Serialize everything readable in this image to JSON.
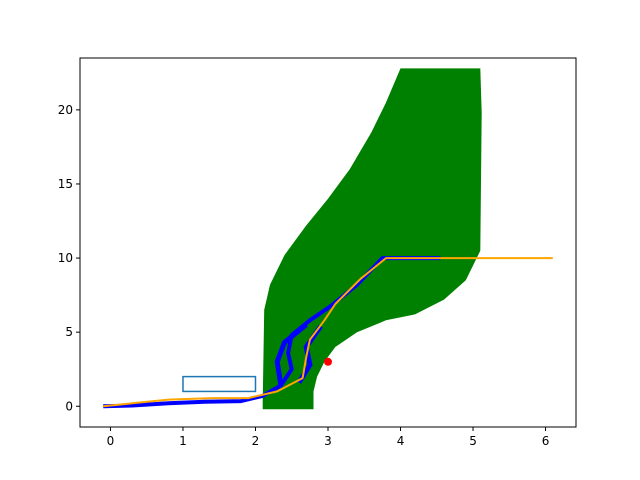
{
  "chart_data": {
    "type": "line",
    "title": "",
    "xlabel": "",
    "ylabel": "",
    "xlim": [
      -0.42,
      6.42
    ],
    "ylim": [
      -1.4,
      23.5
    ],
    "grid": false,
    "x_ticks": [
      0,
      1,
      2,
      3,
      4,
      5,
      6
    ],
    "y_ticks": [
      0,
      5,
      10,
      15,
      20
    ],
    "colors": {
      "band": "#008000",
      "trajectories": "#0000ff",
      "path": "#ffa500",
      "rectangle": "#1f77b4",
      "goal_point": "#ff0000"
    },
    "band_region": {
      "upper": [
        [
          2.1,
          0.3
        ],
        [
          2.12,
          6.5
        ],
        [
          2.2,
          8.2
        ],
        [
          2.4,
          10.2
        ],
        [
          2.7,
          12.2
        ],
        [
          3.0,
          14.0
        ],
        [
          3.3,
          16.0
        ],
        [
          3.6,
          18.5
        ],
        [
          3.8,
          20.5
        ],
        [
          4.0,
          22.8
        ],
        [
          5.1,
          22.8
        ]
      ],
      "right": [
        [
          5.1,
          22.8
        ],
        [
          5.12,
          19.8
        ],
        [
          5.1,
          10.5
        ]
      ],
      "lower": [
        [
          5.1,
          10.5
        ],
        [
          4.9,
          8.5
        ],
        [
          4.6,
          7.2
        ],
        [
          4.2,
          6.2
        ],
        [
          3.8,
          5.8
        ],
        [
          3.4,
          5.0
        ],
        [
          3.1,
          4.0
        ],
        [
          2.95,
          3.0
        ],
        [
          2.85,
          2.0
        ],
        [
          2.8,
          1.0
        ],
        [
          2.8,
          -0.2
        ]
      ],
      "bottom": [
        [
          2.8,
          -0.2
        ],
        [
          2.1,
          -0.2
        ]
      ]
    },
    "rectangle": {
      "x": [
        1.0,
        2.0
      ],
      "y": [
        1.0,
        2.0
      ]
    },
    "goal_point": {
      "x": 3.0,
      "y": 3.0
    },
    "series": [
      {
        "role": "trajectory-bundle",
        "points": [
          [
            -0.1,
            0.0
          ],
          [
            0.3,
            0.05
          ],
          [
            0.8,
            0.2
          ],
          [
            1.3,
            0.3
          ],
          [
            1.8,
            0.35
          ],
          [
            2.1,
            0.7
          ],
          [
            2.35,
            1.4
          ],
          [
            2.5,
            2.5
          ],
          [
            2.45,
            3.6
          ],
          [
            2.5,
            4.8
          ],
          [
            2.75,
            5.8
          ],
          [
            3.05,
            6.8
          ],
          [
            3.4,
            8.2
          ],
          [
            3.75,
            10.0
          ],
          [
            4.55,
            10.0
          ]
        ]
      },
      {
        "role": "orange-path",
        "points": [
          [
            -0.1,
            0.0
          ],
          [
            0.3,
            0.2
          ],
          [
            0.8,
            0.45
          ],
          [
            1.4,
            0.55
          ],
          [
            1.9,
            0.55
          ],
          [
            2.3,
            1.0
          ],
          [
            2.65,
            1.9
          ],
          [
            2.7,
            3.3
          ],
          [
            2.75,
            4.5
          ],
          [
            2.95,
            5.8
          ],
          [
            3.1,
            6.9
          ],
          [
            3.45,
            8.6
          ],
          [
            3.8,
            10.0
          ],
          [
            6.1,
            10.0
          ]
        ]
      }
    ]
  }
}
